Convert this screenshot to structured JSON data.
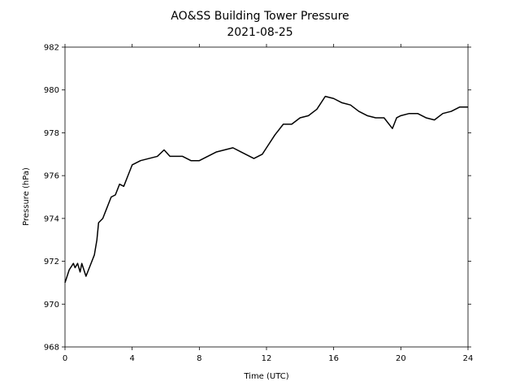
{
  "chart_data": {
    "type": "line",
    "title": "AO&SS Building Tower Pressure",
    "subtitle": "2021-08-25",
    "x_label": "Time (UTC)",
    "y_label": "Pressure (hPa)",
    "xlim": [
      0,
      24
    ],
    "ylim": [
      968,
      982
    ],
    "xticks": [
      0,
      4,
      8,
      12,
      16,
      20,
      24
    ],
    "yticks": [
      968,
      970,
      972,
      974,
      976,
      978,
      980,
      982
    ],
    "grid": false,
    "x": [
      0,
      0.25,
      0.5,
      0.6,
      0.75,
      0.9,
      1.0,
      1.25,
      1.5,
      1.75,
      1.9,
      2.0,
      2.25,
      2.5,
      2.75,
      3.0,
      3.25,
      3.5,
      3.75,
      4.0,
      4.25,
      4.5,
      5.0,
      5.5,
      5.9,
      6.25,
      7.0,
      7.5,
      8.0,
      8.5,
      9.0,
      9.5,
      10.0,
      10.5,
      11.0,
      11.25,
      11.75,
      12.0,
      12.5,
      13.0,
      13.5,
      14.0,
      14.5,
      15.0,
      15.5,
      16.0,
      16.5,
      17.0,
      17.5,
      18.0,
      18.5,
      19.0,
      19.5,
      19.75,
      20.0,
      20.5,
      21.0,
      21.5,
      22.0,
      22.5,
      23.0,
      23.5,
      24.0
    ],
    "series": [
      {
        "name": "Pressure",
        "color": "#000000",
        "values": [
          971.0,
          971.6,
          971.9,
          971.7,
          971.9,
          971.5,
          971.9,
          971.3,
          971.8,
          972.3,
          973.0,
          973.8,
          974.0,
          974.5,
          975.0,
          975.1,
          975.6,
          975.5,
          976.0,
          976.5,
          976.6,
          976.7,
          976.8,
          976.9,
          977.2,
          976.9,
          976.9,
          976.7,
          976.7,
          976.9,
          977.1,
          977.2,
          977.3,
          977.1,
          976.9,
          976.8,
          977.0,
          977.3,
          977.9,
          978.4,
          978.4,
          978.7,
          978.8,
          979.1,
          979.7,
          979.6,
          979.4,
          979.3,
          979.0,
          978.8,
          978.7,
          978.7,
          978.2,
          978.7,
          978.8,
          978.9,
          978.9,
          978.7,
          978.6,
          978.9,
          979.0,
          979.2,
          979.2
        ]
      }
    ]
  }
}
